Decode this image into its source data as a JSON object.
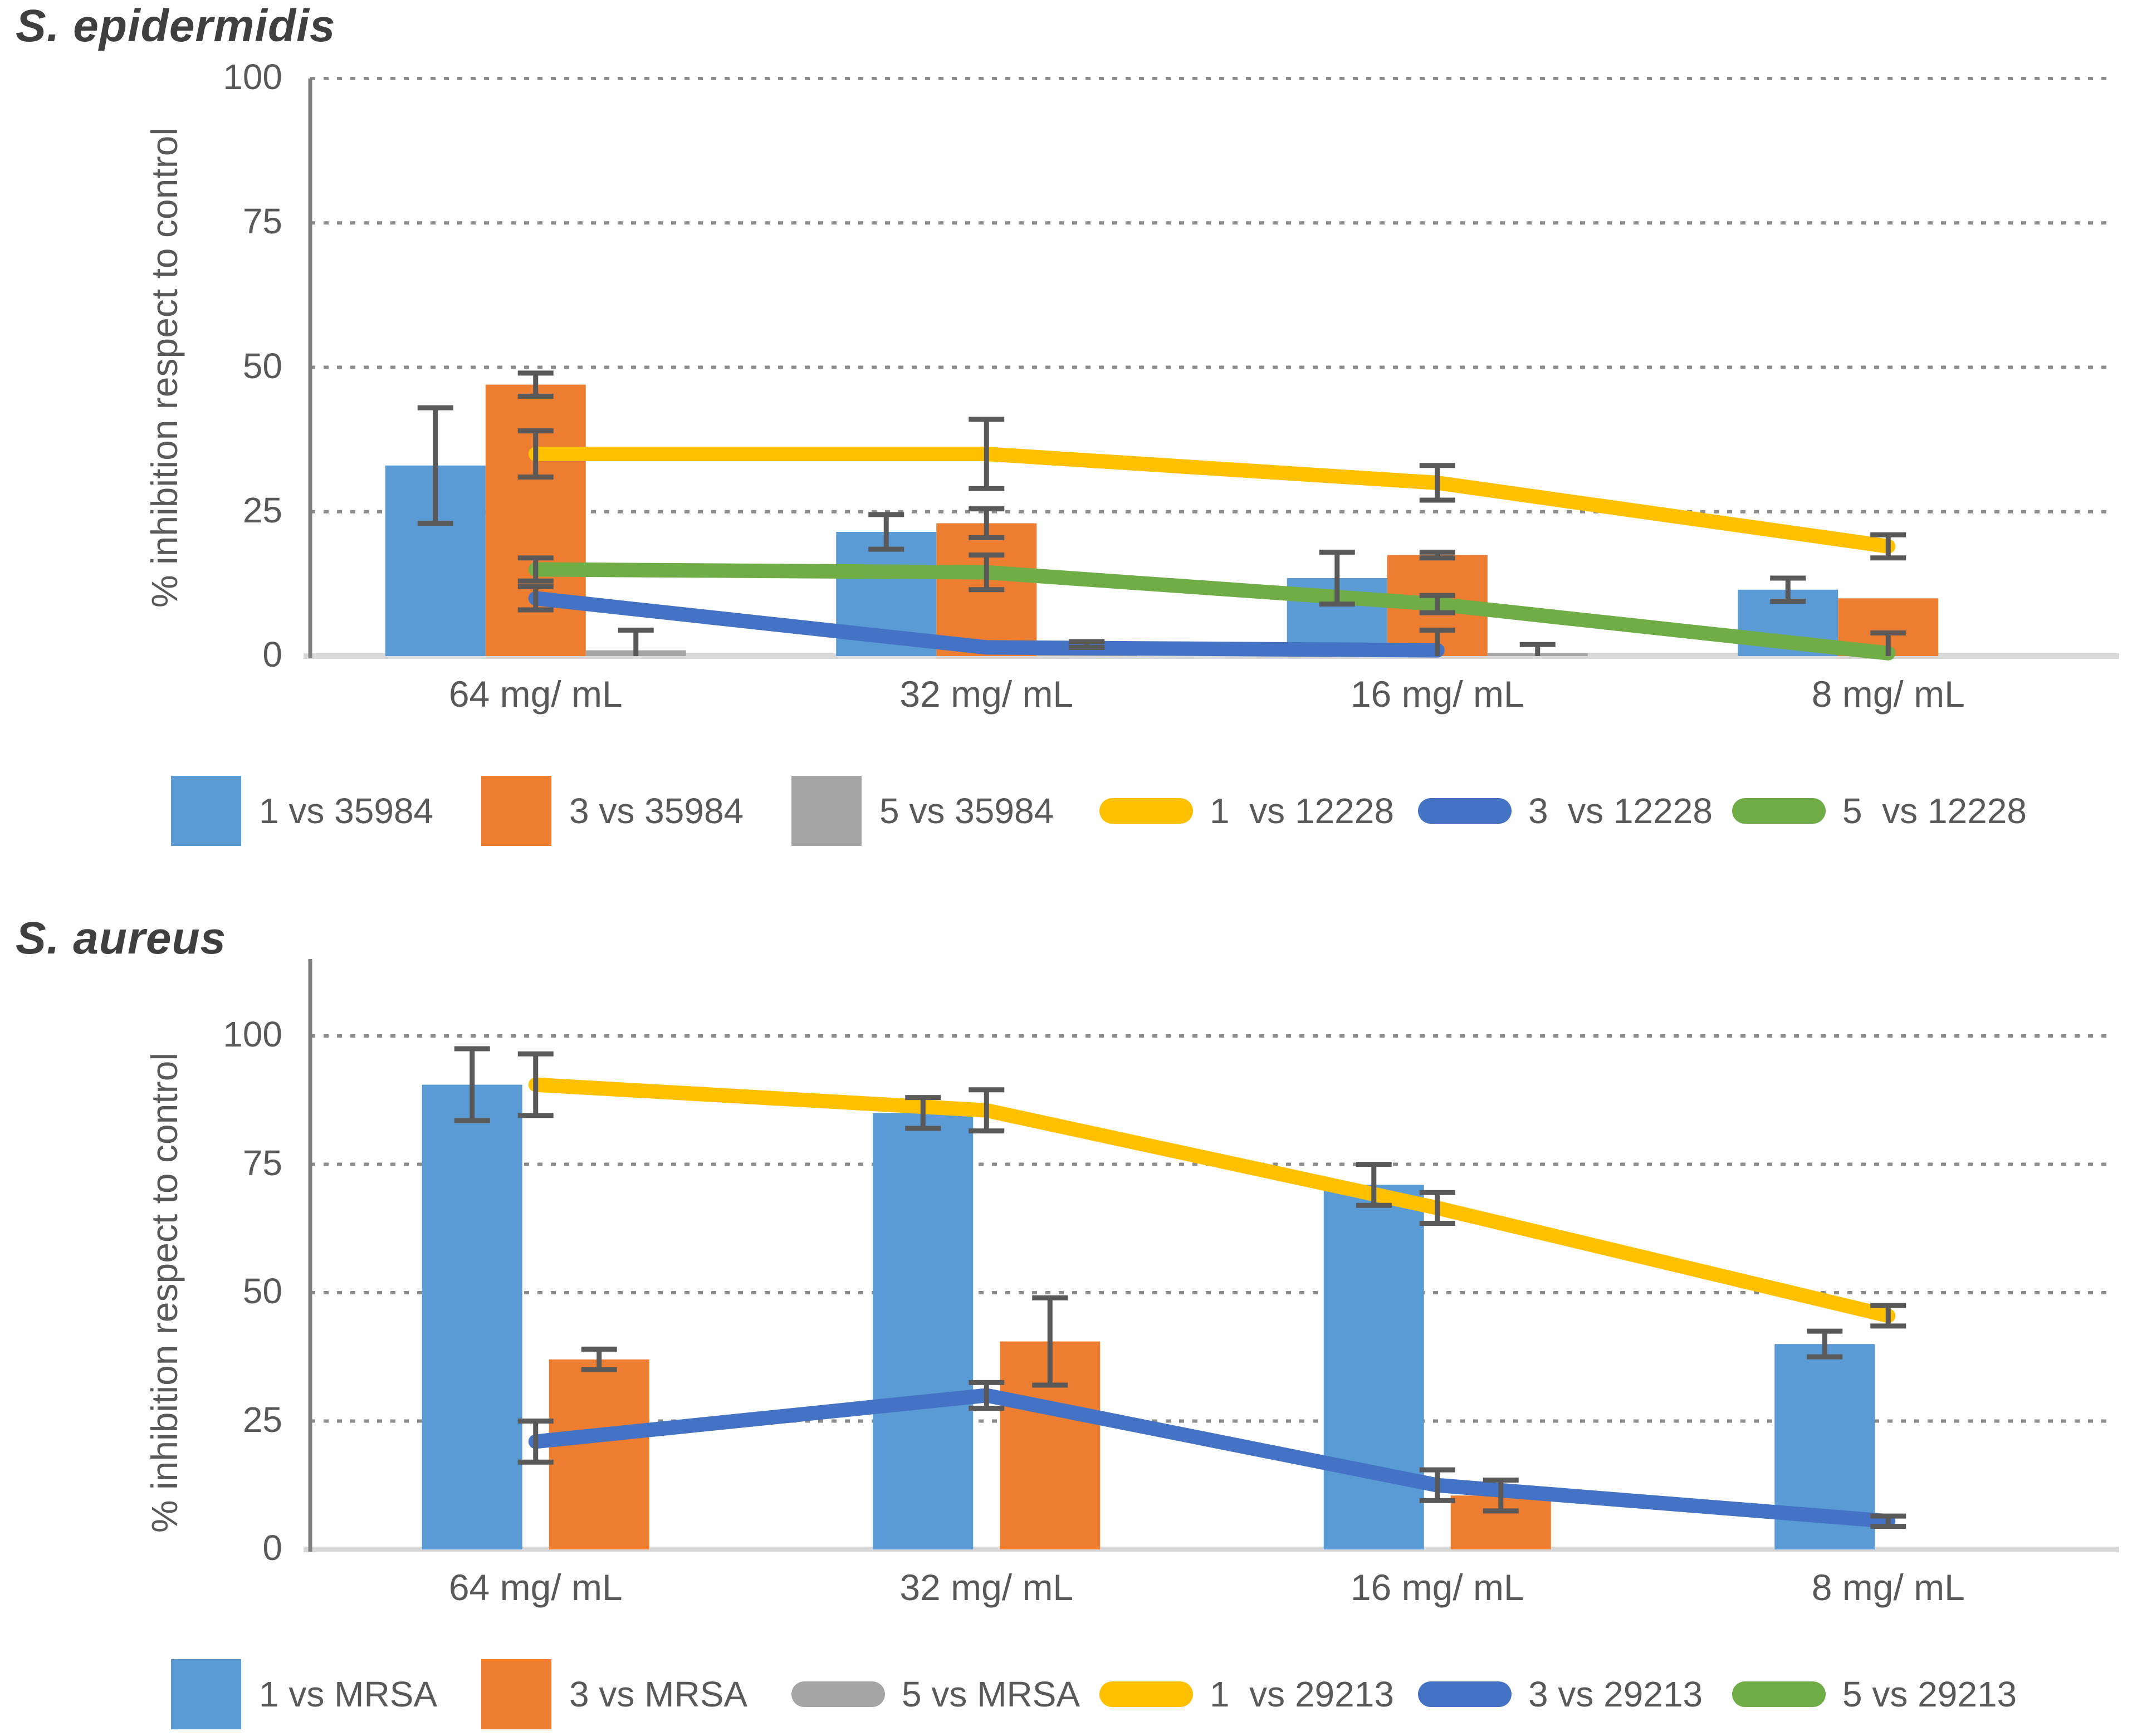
{
  "chart_data": [
    {
      "type": "bar+line combo",
      "title": "S. epidermidis",
      "ylabel": "% inhibition respect to control",
      "categories": [
        "64 mg/ mL",
        "32 mg/ mL",
        "16 mg/ mL",
        "8 mg/ mL"
      ],
      "yticks": [
        0,
        25,
        50,
        75,
        100
      ],
      "ylim": [
        0,
        100
      ],
      "grid": "dotted horizontal at 25/50/75/100",
      "legend_position": "bottom",
      "series": [
        {
          "name": "1 vs 35984",
          "type": "bar",
          "color": "#5B9BD5",
          "values": [
            33,
            21.5,
            13.5,
            11.5
          ],
          "errors": [
            10,
            3,
            4.5,
            2
          ]
        },
        {
          "name": "3 vs 35984",
          "type": "bar",
          "color": "#ED7D31",
          "values": [
            47,
            23,
            17.5,
            10
          ],
          "errors": [
            2,
            2.5,
            0.5,
            null
          ]
        },
        {
          "name": "5 vs 35984",
          "type": "bar",
          "color": "#A5A5A5",
          "values": [
            1,
            2,
            0.5,
            null
          ],
          "errors": [
            3.5,
            0.5,
            1.5,
            null
          ]
        },
        {
          "name": "1  vs 12228",
          "type": "line",
          "color": "#FFC000",
          "values": [
            35,
            35,
            30,
            19
          ],
          "errors": [
            4,
            6,
            3,
            2
          ]
        },
        {
          "name": "3  vs 12228",
          "type": "line",
          "color": "#4472C4",
          "values": [
            10,
            1.5,
            1,
            null
          ],
          "errors": [
            2,
            null,
            3.5,
            null
          ]
        },
        {
          "name": "5  vs 12228",
          "type": "line",
          "color": "#70AD47",
          "values": [
            15,
            14.5,
            9,
            0.5
          ],
          "errors": [
            2,
            3,
            1.5,
            3.5
          ]
        }
      ]
    },
    {
      "type": "bar+line combo",
      "title": "S. aureus",
      "ylabel": "% inhibition respect to control",
      "categories": [
        "64 mg/ mL",
        "32 mg/ mL",
        "16 mg/ mL",
        "8 mg/ mL"
      ],
      "yticks": [
        0,
        25,
        50,
        75,
        100
      ],
      "ylim": [
        0,
        115
      ],
      "grid": "dotted horizontal at 25/50/75/100",
      "legend_position": "bottom",
      "series": [
        {
          "name": "1 vs MRSA",
          "type": "bar",
          "color": "#5B9BD5",
          "values": [
            90.5,
            85,
            71,
            40
          ],
          "errors": [
            7,
            3,
            4,
            2.5
          ]
        },
        {
          "name": "3 vs MRSA",
          "type": "bar",
          "color": "#ED7D31",
          "values": [
            37,
            40.5,
            10.5,
            null
          ],
          "errors": [
            2,
            8.5,
            3,
            null
          ]
        },
        {
          "name": "5 vs MRSA",
          "type": "line",
          "color": "#A5A5A5",
          "values": [
            null,
            null,
            null,
            null
          ],
          "errors": [
            null,
            null,
            null,
            null
          ]
        },
        {
          "name": "1  vs 29213",
          "type": "line",
          "color": "#FFC000",
          "values": [
            90.5,
            85.5,
            66.5,
            45.5
          ],
          "errors": [
            6,
            4,
            3,
            2
          ]
        },
        {
          "name": "3 vs 29213",
          "type": "line",
          "color": "#4472C4",
          "values": [
            21,
            30,
            12.5,
            5.5
          ],
          "errors": [
            4,
            2.5,
            3,
            1
          ]
        },
        {
          "name": "5 vs 29213",
          "type": "line",
          "color": "#70AD47",
          "values": [
            null,
            null,
            null,
            null
          ],
          "errors": [
            null,
            null,
            null,
            null
          ]
        }
      ]
    }
  ],
  "style_colors": {
    "bar_blue": "#5B9BD5",
    "bar_orange": "#ED7D31",
    "bar_gray": "#A5A5A5",
    "line_yellow": "#FFC000",
    "line_blue": "#4472C4",
    "line_green": "#70AD47",
    "gridline": "#8C8C8C",
    "axis_line": "#808080",
    "baseline": "#D9D9D9",
    "text": "#595959",
    "title_text": "#3F3F3F",
    "error_bar": "#595959"
  }
}
